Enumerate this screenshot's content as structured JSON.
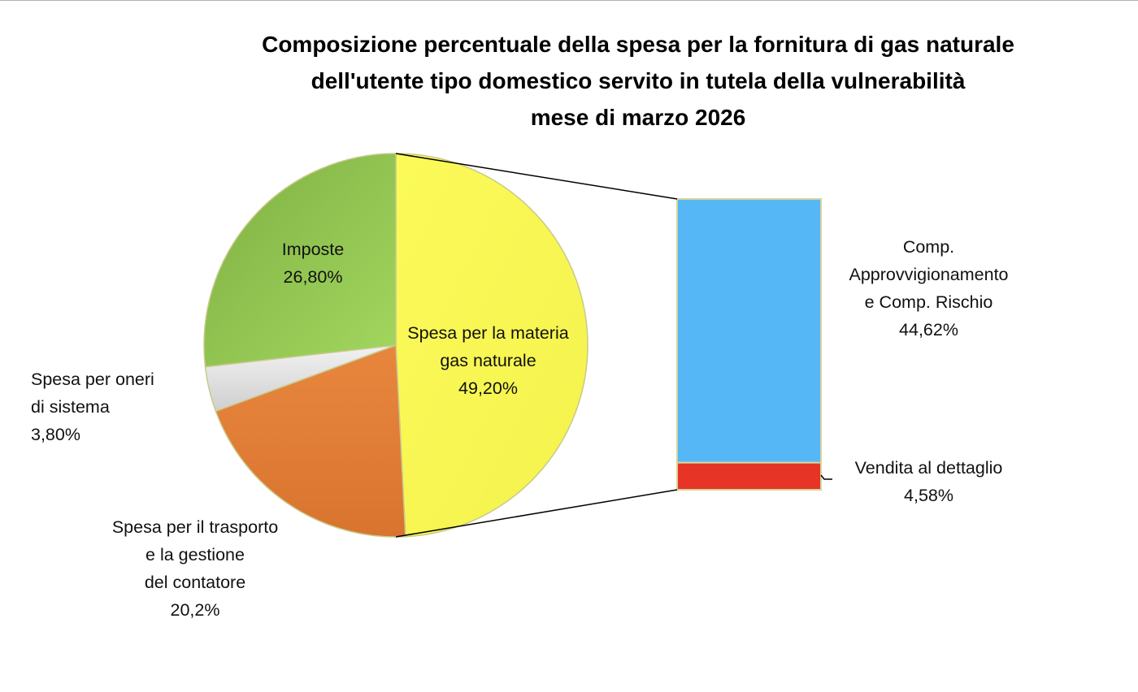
{
  "chart_data": {
    "type": "pie",
    "subtype": "bar-of-pie",
    "title": [
      "Composizione percentuale della spesa per la fornitura di gas naturale",
      "dell'utente tipo domestico servito in tutela della vulnerabilità",
      "mese di marzo 2026"
    ],
    "pie": [
      {
        "name": "Spesa per la materia gas naturale",
        "label_lines": [
          "Spesa per la materia",
          "gas naturale"
        ],
        "value_label": "49,20%",
        "value": 49.2,
        "color": "#fbfa5a"
      },
      {
        "name": "Spesa per il trasporto e la gestione del contatore",
        "label_lines": [
          "Spesa per il trasporto",
          "e la gestione",
          "del contatore"
        ],
        "value_label": "20,2%",
        "value": 20.2,
        "color": "#e27b36"
      },
      {
        "name": "Spesa per oneri di sistema",
        "label_lines": [
          "Spesa per oneri",
          "di sistema"
        ],
        "value_label": "3,80%",
        "value": 3.8,
        "color": "#d9d9d9"
      },
      {
        "name": "Imposte",
        "label_lines": [
          "Imposte"
        ],
        "value_label": "26,80%",
        "value": 26.8,
        "color": "#8fc150"
      }
    ],
    "bar": [
      {
        "name": "Comp. Approvvigionamento e Comp. Rischio",
        "label_lines": [
          "Comp.",
          "Approvvigionamento",
          "e  Comp. Rischio"
        ],
        "value_label": "44,62%",
        "value": 44.62,
        "color": "#55b7f6"
      },
      {
        "name": "Vendita al dettaglio",
        "label_lines": [
          "Vendita al dettaglio"
        ],
        "value_label": "4,58%",
        "value": 4.58,
        "color": "#e63426"
      }
    ]
  }
}
